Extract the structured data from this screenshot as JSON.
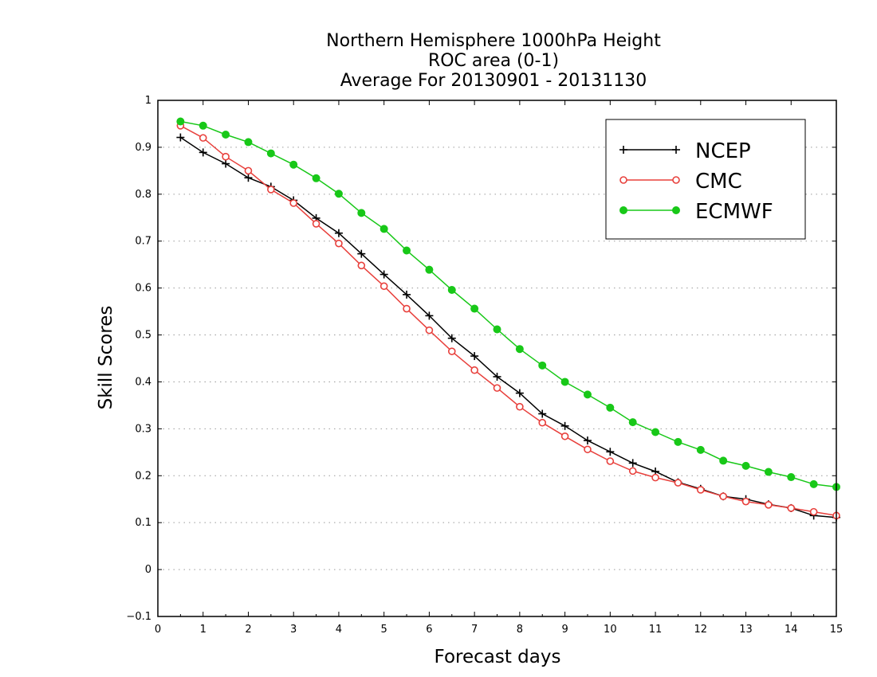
{
  "chart_data": {
    "type": "line",
    "title_lines": [
      "Northern Hemisphere 1000hPa Height",
      "ROC area (0-1)",
      "Average For 20130901 - 20131130"
    ],
    "xlabel": "Forecast days",
    "ylabel": "Skill Scores",
    "xlim": [
      0,
      15
    ],
    "ylim": [
      -0.1,
      1
    ],
    "x_ticks": [
      "0",
      "1",
      "2",
      "3",
      "4",
      "5",
      "6",
      "7",
      "8",
      "9",
      "10",
      "11",
      "12",
      "13",
      "14",
      "15"
    ],
    "y_ticks": [
      "-0.1",
      "0",
      "0.1",
      "0.2",
      "0.3",
      "0.4",
      "0.5",
      "0.6",
      "0.7",
      "0.8",
      "0.9",
      "1"
    ],
    "grid": "horizontal dotted",
    "legend_position": "top-right",
    "x": [
      0.5,
      1.0,
      1.5,
      2.0,
      2.5,
      3.0,
      3.5,
      4.0,
      4.5,
      5.0,
      5.5,
      6.0,
      6.5,
      7.0,
      7.5,
      8.0,
      8.5,
      9.0,
      9.5,
      10.0,
      10.5,
      11.0,
      11.5,
      12.0,
      12.5,
      13.0,
      13.5,
      14.0,
      14.5,
      15.0
    ],
    "series": [
      {
        "name": "NCEP",
        "color": "#000000",
        "marker": "plus",
        "values": [
          0.921,
          0.889,
          0.865,
          0.835,
          0.816,
          0.787,
          0.749,
          0.717,
          0.673,
          0.629,
          0.586,
          0.541,
          0.493,
          0.455,
          0.411,
          0.376,
          0.332,
          0.306,
          0.275,
          0.251,
          0.227,
          0.209,
          0.186,
          0.172,
          0.156,
          0.15,
          0.139,
          0.131,
          0.115,
          0.111
        ]
      },
      {
        "name": "CMC",
        "color": "#e8403c",
        "marker": "open-circle",
        "values": [
          0.946,
          0.92,
          0.88,
          0.85,
          0.81,
          0.781,
          0.737,
          0.695,
          0.648,
          0.604,
          0.556,
          0.51,
          0.465,
          0.425,
          0.387,
          0.347,
          0.313,
          0.284,
          0.256,
          0.231,
          0.21,
          0.196,
          0.185,
          0.17,
          0.156,
          0.145,
          0.138,
          0.131,
          0.123,
          0.115
        ]
      },
      {
        "name": "ECMWF",
        "color": "#18c818",
        "marker": "filled-circle",
        "values": [
          0.955,
          0.946,
          0.927,
          0.911,
          0.887,
          0.863,
          0.834,
          0.801,
          0.76,
          0.726,
          0.68,
          0.639,
          0.596,
          0.556,
          0.512,
          0.47,
          0.435,
          0.4,
          0.373,
          0.345,
          0.314,
          0.293,
          0.272,
          0.255,
          0.232,
          0.221,
          0.208,
          0.197,
          0.182,
          0.176
        ]
      }
    ]
  }
}
